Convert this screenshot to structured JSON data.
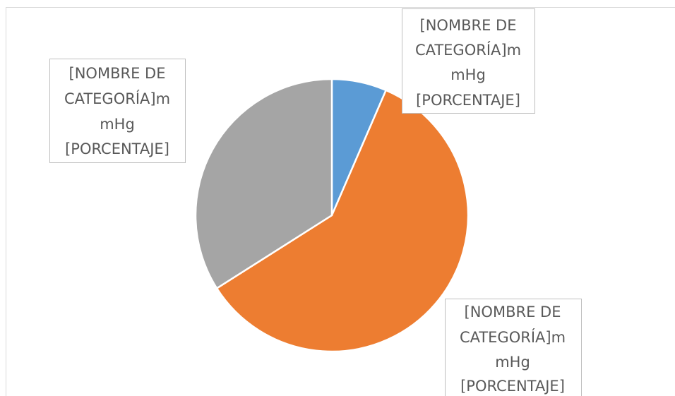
{
  "chart_data": {
    "type": "pie",
    "values": [
      6.5,
      59.5,
      34
    ],
    "colors": [
      "#5b9bd5",
      "#ed7d31",
      "#a5a5a5"
    ],
    "value_labels": [
      [
        "[NOMBRE DE",
        "CATEGORÍA]m",
        "mHg",
        "[PORCENTAJE]"
      ],
      [
        "[NOMBRE DE",
        "CATEGORÍA]m",
        "mHg",
        "[PORCENTAJE]"
      ],
      [
        "[NOMBRE DE",
        "CATEGORÍA]m",
        "mHg",
        "[PORCENTAJE]"
      ]
    ]
  }
}
